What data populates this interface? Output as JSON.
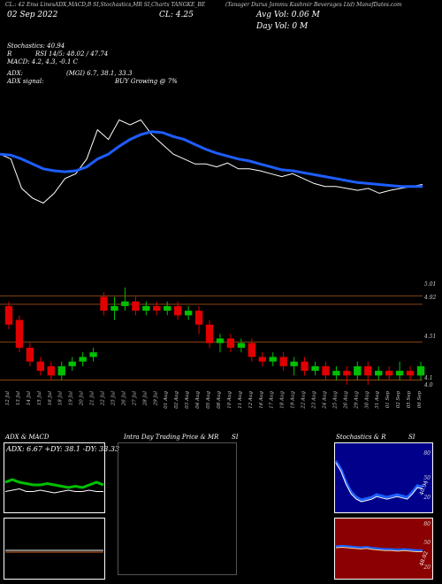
{
  "header": {
    "company": "(Tanager  Durus Jammu Kashmir Beverages Ltd) ManafDates.com",
    "ticker_tags": "CL.: 42 Ema LinesADX,MACD,B  SI,Stochastics,MR  SI,Charts TANGKE_BE",
    "date": "02 Sep  2022",
    "price_label": "CL: 4.25",
    "avg_vol": "Avg Vol: 0.06  M",
    "day_vol": "Day Vol: 0  M"
  },
  "indicators": {
    "stochastics": "Stochastics: 40.94",
    "rsi": "RSI 14/5: 48.02 / 47.74",
    "macd": "MACD: 4.2, 4.3, -0.1 C",
    "adx": "ADX:",
    "adx_values": "(MGI) 6.7, 38.1, 33.3",
    "adx_signal_label": "ADX  signal:",
    "adx_signal": "BUY Growing @ 7%"
  },
  "price_levels": [
    "5.01",
    "4.92",
    "4.51",
    "4.1"
  ],
  "price_levels_extra": "4.0",
  "colors": {
    "up": "#00c000",
    "down": "#e00000",
    "ema": "#1e5eff",
    "level_line": "#8b4513",
    "adx_green": "#00c000",
    "stoch_bg": "#00008b",
    "rsi_bg": "#8b0000"
  },
  "chart_data": {
    "type": "line",
    "x": [
      "12 Jul",
      "13 Jul",
      "14 Jul",
      "15 Jul",
      "16 Jul",
      "18 Jul",
      "19 Jul",
      "20 Jul",
      "21 Jul",
      "22 Jul",
      "25 Jul",
      "26 Jul",
      "27 Jul",
      "28 Jul",
      "29 Jul",
      "01 Aug",
      "02 Aug",
      "03 Aug",
      "04 Aug",
      "05 Aug",
      "08 Aug",
      "10 Aug",
      "11 Aug",
      "12 Aug",
      "16 Aug",
      "17 Aug",
      "18 Aug",
      "19 Aug",
      "22 Aug",
      "23 Aug",
      "24 Aug",
      "25 Aug",
      "26 Aug",
      "29 Aug",
      "30 Aug",
      "31 Aug",
      "01 Sep",
      "02 Sep",
      "05 Sep",
      "06 Sep"
    ],
    "series": [
      {
        "name": "Price",
        "values": [
          4.95,
          4.9,
          4.6,
          4.5,
          4.45,
          4.55,
          4.7,
          4.75,
          4.9,
          5.2,
          5.1,
          5.3,
          5.25,
          5.3,
          5.15,
          5.05,
          4.95,
          4.9,
          4.85,
          4.85,
          4.82,
          4.86,
          4.8,
          4.8,
          4.78,
          4.75,
          4.72,
          4.75,
          4.7,
          4.65,
          4.62,
          4.62,
          4.6,
          4.58,
          4.6,
          4.55,
          4.58,
          4.6,
          4.62,
          4.64
        ]
      },
      {
        "name": "EMA",
        "values": [
          4.95,
          4.94,
          4.9,
          4.85,
          4.8,
          4.78,
          4.77,
          4.78,
          4.82,
          4.9,
          4.95,
          5.03,
          5.1,
          5.15,
          5.18,
          5.17,
          5.13,
          5.1,
          5.05,
          5.0,
          4.96,
          4.93,
          4.9,
          4.88,
          4.85,
          4.82,
          4.79,
          4.78,
          4.76,
          4.74,
          4.72,
          4.7,
          4.68,
          4.66,
          4.65,
          4.64,
          4.63,
          4.62,
          4.62,
          4.62
        ]
      }
    ],
    "candles": [
      {
        "o": 4.9,
        "c": 4.7,
        "h": 4.95,
        "l": 4.65
      },
      {
        "o": 4.75,
        "c": 4.45,
        "h": 4.8,
        "l": 4.4
      },
      {
        "o": 4.45,
        "c": 4.3,
        "h": 4.5,
        "l": 4.25
      },
      {
        "o": 4.3,
        "c": 4.2,
        "h": 4.35,
        "l": 4.15
      },
      {
        "o": 4.25,
        "c": 4.15,
        "h": 4.3,
        "l": 4.1
      },
      {
        "o": 4.15,
        "c": 4.25,
        "h": 4.3,
        "l": 4.1
      },
      {
        "o": 4.25,
        "c": 4.3,
        "h": 4.35,
        "l": 4.2
      },
      {
        "o": 4.3,
        "c": 4.35,
        "h": 4.4,
        "l": 4.25
      },
      {
        "o": 4.35,
        "c": 4.4,
        "h": 4.45,
        "l": 4.3
      },
      {
        "o": 5.0,
        "c": 4.85,
        "h": 5.05,
        "l": 4.8
      },
      {
        "o": 4.85,
        "c": 4.9,
        "h": 5.0,
        "l": 4.75
      },
      {
        "o": 4.9,
        "c": 4.95,
        "h": 5.1,
        "l": 4.85
      },
      {
        "o": 4.95,
        "c": 4.85,
        "h": 5.0,
        "l": 4.8
      },
      {
        "o": 4.85,
        "c": 4.9,
        "h": 4.95,
        "l": 4.8
      },
      {
        "o": 4.9,
        "c": 4.85,
        "h": 4.95,
        "l": 4.8
      },
      {
        "o": 4.85,
        "c": 4.9,
        "h": 4.95,
        "l": 4.8
      },
      {
        "o": 4.9,
        "c": 4.8,
        "h": 4.95,
        "l": 4.75
      },
      {
        "o": 4.8,
        "c": 4.85,
        "h": 4.9,
        "l": 4.75
      },
      {
        "o": 4.85,
        "c": 4.7,
        "h": 4.9,
        "l": 4.6
      },
      {
        "o": 4.7,
        "c": 4.5,
        "h": 4.75,
        "l": 4.45
      },
      {
        "o": 4.5,
        "c": 4.55,
        "h": 4.6,
        "l": 4.4
      },
      {
        "o": 4.55,
        "c": 4.45,
        "h": 4.6,
        "l": 4.4
      },
      {
        "o": 4.45,
        "c": 4.5,
        "h": 4.55,
        "l": 4.4
      },
      {
        "o": 4.5,
        "c": 4.35,
        "h": 4.55,
        "l": 4.3
      },
      {
        "o": 4.35,
        "c": 4.3,
        "h": 4.4,
        "l": 4.25
      },
      {
        "o": 4.3,
        "c": 4.35,
        "h": 4.4,
        "l": 4.25
      },
      {
        "o": 4.35,
        "c": 4.25,
        "h": 4.4,
        "l": 4.2
      },
      {
        "o": 4.25,
        "c": 4.3,
        "h": 4.35,
        "l": 4.15
      },
      {
        "o": 4.3,
        "c": 4.2,
        "h": 4.35,
        "l": 4.15
      },
      {
        "o": 4.2,
        "c": 4.25,
        "h": 4.3,
        "l": 4.15
      },
      {
        "o": 4.25,
        "c": 4.15,
        "h": 4.3,
        "l": 4.1
      },
      {
        "o": 4.15,
        "c": 4.2,
        "h": 4.25,
        "l": 4.1
      },
      {
        "o": 4.2,
        "c": 4.15,
        "h": 4.25,
        "l": 4.05
      },
      {
        "o": 4.15,
        "c": 4.25,
        "h": 4.3,
        "l": 4.1
      },
      {
        "o": 4.25,
        "c": 4.15,
        "h": 4.3,
        "l": 4.05
      },
      {
        "o": 4.15,
        "c": 4.2,
        "h": 4.25,
        "l": 4.1
      },
      {
        "o": 4.2,
        "c": 4.15,
        "h": 4.25,
        "l": 4.1
      },
      {
        "o": 4.15,
        "c": 4.2,
        "h": 4.3,
        "l": 4.1
      },
      {
        "o": 4.2,
        "c": 4.15,
        "h": 4.25,
        "l": 4.1
      },
      {
        "o": 4.15,
        "c": 4.25,
        "h": 4.3,
        "l": 4.1
      }
    ],
    "candle_range": [
      4.0,
      5.1
    ]
  },
  "bottom_panels": {
    "adx_title": "ADX  & MACD",
    "adx_readout": "ADX: 6.67  +DY: 38.1  -DY: 33.33",
    "intraday_title": "Intra  Day Trading Price  & MR",
    "intraday_suffix": "SI",
    "stoch_title": "Stochastics & R",
    "stoch_suffix": "SI",
    "stoch_axis": [
      "80",
      "50",
      "20"
    ],
    "rsi_axis": [
      "80",
      "50",
      "20"
    ],
    "stoch_value_label": "40.94",
    "rsi_value_label": "48.02"
  },
  "oscillators": {
    "adx_plus": [
      40,
      42,
      40,
      39,
      38,
      38,
      39,
      38,
      37,
      36,
      37,
      36,
      38,
      40,
      38
    ],
    "adx_minus": [
      33,
      34,
      35,
      33,
      33,
      34,
      33,
      32,
      33,
      34,
      33,
      33,
      34,
      33,
      33
    ],
    "stoch": [
      78,
      65,
      45,
      30,
      22,
      18,
      20,
      22,
      26,
      24,
      22,
      24,
      26,
      24,
      22,
      30,
      40,
      38
    ],
    "rsi": [
      55,
      56,
      55,
      54,
      53,
      54,
      52,
      51,
      50,
      50,
      49,
      50,
      49,
      48,
      48
    ]
  }
}
